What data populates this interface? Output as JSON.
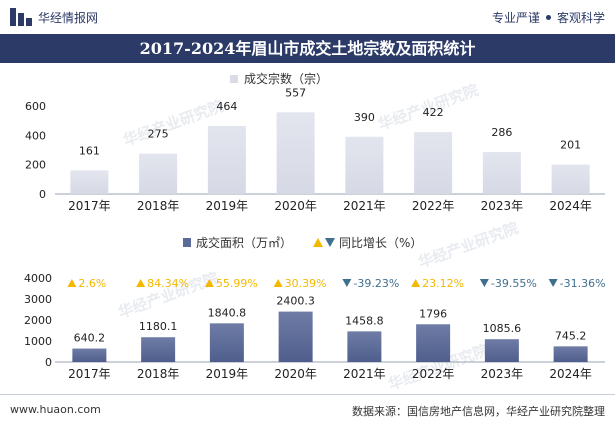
{
  "header": {
    "brand": "华经情报网",
    "slogan_left": "专业严谨",
    "slogan_right": "客观科学"
  },
  "title": "2017-2024年眉山市成交土地宗数及面积统计",
  "colors": {
    "title_bg": "#2b3a67",
    "bar_top": "#dde0ea",
    "bar_bottom": "#5b6a98",
    "up": "#f5b800",
    "down": "#3f6f8e",
    "text_up": "#f5b800",
    "text_down": "#3f6f8e"
  },
  "chart_data": [
    {
      "type": "bar",
      "legend": "成交宗数（宗）",
      "categories": [
        "2017年",
        "2018年",
        "2019年",
        "2020年",
        "2021年",
        "2022年",
        "2023年",
        "2024年"
      ],
      "values": [
        161,
        275,
        464,
        557,
        390,
        422,
        286,
        201
      ],
      "ylim": [
        0,
        600
      ],
      "yticks": [
        "0",
        "200",
        "400",
        "600"
      ]
    },
    {
      "type": "bar",
      "legend_bar": "成交面积（万㎡）",
      "legend_change": "同比增长（%）",
      "categories": [
        "2017年",
        "2018年",
        "2019年",
        "2020年",
        "2021年",
        "2022年",
        "2023年",
        "2024年"
      ],
      "values": [
        640.2,
        1180.1,
        1840.8,
        2400.3,
        1458.8,
        1796,
        1085.6,
        745.2
      ],
      "value_labels": [
        "640.2",
        "1180.1",
        "1840.8",
        "2400.3",
        "1458.8",
        "1796",
        "1085.6",
        "745.2"
      ],
      "yoy_growth": [
        "2.6%",
        "84.34%",
        "55.99%",
        "30.39%",
        "-39.23%",
        "23.12%",
        "-39.55%",
        "-31.36%"
      ],
      "yoy_direction": [
        "up",
        "up",
        "up",
        "up",
        "down",
        "up",
        "down",
        "down"
      ],
      "ylim": [
        0,
        4000
      ],
      "yticks": [
        "0",
        "1000",
        "2000",
        "3000",
        "4000"
      ]
    }
  ],
  "watermark": "华经产业研究院",
  "footer": {
    "url": "www.huaon.com",
    "source": "数据来源：国信房地产信息网，华经产业研究院整理"
  }
}
